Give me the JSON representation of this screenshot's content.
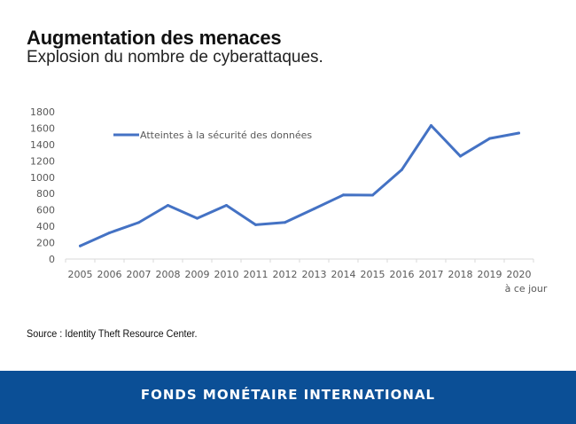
{
  "header": {
    "title": "Augmentation des menaces",
    "subtitle": "Explosion du nombre de cyberattaques."
  },
  "chart_data": {
    "type": "line",
    "title": "",
    "xlabel": "",
    "ylabel": "",
    "categories": [
      "2005",
      "2006",
      "2007",
      "2008",
      "2009",
      "2010",
      "2011",
      "2012",
      "2013",
      "2014",
      "2015",
      "2016",
      "2017",
      "2018",
      "2019",
      "2020"
    ],
    "category_sublabels": {
      "2020": "à ce jour"
    },
    "series": [
      {
        "name": "Atteintes à la sécurité des données",
        "color": "#4472c4",
        "values": [
          160,
          320,
          446,
          656,
          498,
          656,
          419,
          447,
          614,
          783,
          781,
          1093,
          1632,
          1257,
          1473,
          1540
        ]
      }
    ],
    "ylim": [
      0,
      1800
    ],
    "yticks": [
      "0",
      "200",
      "400",
      "600",
      "800",
      "1000",
      "1200",
      "1400",
      "1600",
      "1800"
    ],
    "grid": false,
    "legend_position": "top-left"
  },
  "source": "Source : Identity Theft Resource Center.",
  "footer": {
    "org_name": "FONDS MONÉTAIRE INTERNATIONAL",
    "color": "#0b4f96"
  }
}
